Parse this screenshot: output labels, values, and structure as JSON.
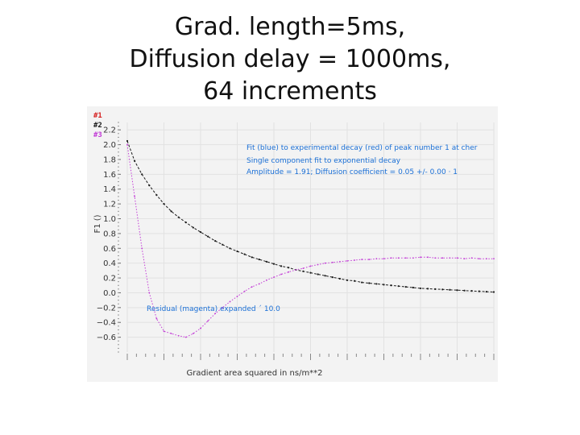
{
  "slide": {
    "title_lines": [
      "Grad. length=5ms,",
      "Diffusion delay = 1000ms,",
      "64 increments"
    ]
  },
  "chart_data": {
    "type": "line",
    "xlabel": "Gradient area squared in ns/m**2",
    "ylabel": "F1 ()",
    "ylim": [
      -0.8,
      2.3
    ],
    "y_ticks": [
      -0.6,
      -0.4,
      -0.2,
      0.0,
      0.2,
      0.4,
      0.6,
      0.8,
      1.0,
      1.2,
      1.4,
      1.6,
      1.8,
      2.0,
      2.2
    ],
    "y_tick_labels": [
      "−0.6",
      "−0.4",
      "−0.2",
      "0.0",
      "0.2",
      "0.4",
      "0.6",
      "0.8",
      "1.0",
      "1.2",
      "1.4",
      "1.6",
      "1.8",
      "2.0",
      "2.2"
    ],
    "grid": true,
    "legend": [
      {
        "label": "#1",
        "color": "#d62020"
      },
      {
        "label": "#2",
        "color": "#1a1a1a"
      },
      {
        "label": "#3",
        "color": "#c23bd6"
      }
    ],
    "annotations": [
      "Fit (blue) to experimental decay (red) of peak number 1 at cher",
      "Single component fit to  exponential decay",
      "Amplitude =    1.91;  Diffusion coefficient =  0.05 +/-  0.00 · 1"
    ],
    "residual_label": "Residual (magenta) expanded ´    10.0",
    "series": [
      {
        "color": "#1a1a1a",
        "x": [
          0,
          2,
          4,
          6,
          8,
          10,
          12,
          14,
          16,
          18,
          20,
          22,
          24,
          26,
          28,
          30,
          32,
          34,
          36,
          38,
          40,
          42,
          44,
          46,
          48,
          50,
          52,
          54,
          56,
          58,
          60,
          62,
          64,
          66,
          68,
          70,
          72,
          74,
          76,
          78,
          80,
          82,
          84,
          86,
          88,
          90,
          92,
          94,
          96,
          98,
          100
        ],
        "values": [
          2.05,
          1.78,
          1.6,
          1.45,
          1.32,
          1.2,
          1.1,
          1.02,
          0.95,
          0.88,
          0.82,
          0.76,
          0.7,
          0.65,
          0.6,
          0.56,
          0.52,
          0.48,
          0.45,
          0.42,
          0.39,
          0.36,
          0.34,
          0.31,
          0.29,
          0.27,
          0.25,
          0.23,
          0.21,
          0.19,
          0.17,
          0.16,
          0.14,
          0.13,
          0.12,
          0.11,
          0.1,
          0.09,
          0.08,
          0.07,
          0.06,
          0.055,
          0.05,
          0.045,
          0.04,
          0.035,
          0.03,
          0.025,
          0.02,
          0.015,
          0.01
        ]
      },
      {
        "color": "#c23bd6",
        "x": [
          0,
          2,
          4,
          6,
          8,
          10,
          12,
          14,
          16,
          18,
          20,
          22,
          24,
          26,
          28,
          30,
          32,
          34,
          36,
          38,
          40,
          42,
          44,
          46,
          48,
          50,
          52,
          54,
          56,
          58,
          60,
          62,
          64,
          66,
          68,
          70,
          72,
          74,
          76,
          78,
          80,
          82,
          84,
          86,
          88,
          90,
          92,
          94,
          96,
          98,
          100
        ],
        "values": [
          2.0,
          1.3,
          0.6,
          0.0,
          -0.35,
          -0.52,
          -0.55,
          -0.58,
          -0.6,
          -0.55,
          -0.48,
          -0.38,
          -0.28,
          -0.2,
          -0.12,
          -0.05,
          0.02,
          0.08,
          0.12,
          0.17,
          0.21,
          0.25,
          0.28,
          0.31,
          0.33,
          0.36,
          0.38,
          0.4,
          0.41,
          0.42,
          0.43,
          0.44,
          0.45,
          0.45,
          0.46,
          0.46,
          0.47,
          0.47,
          0.47,
          0.47,
          0.48,
          0.48,
          0.47,
          0.47,
          0.47,
          0.47,
          0.46,
          0.47,
          0.46,
          0.46,
          0.46
        ]
      }
    ]
  }
}
